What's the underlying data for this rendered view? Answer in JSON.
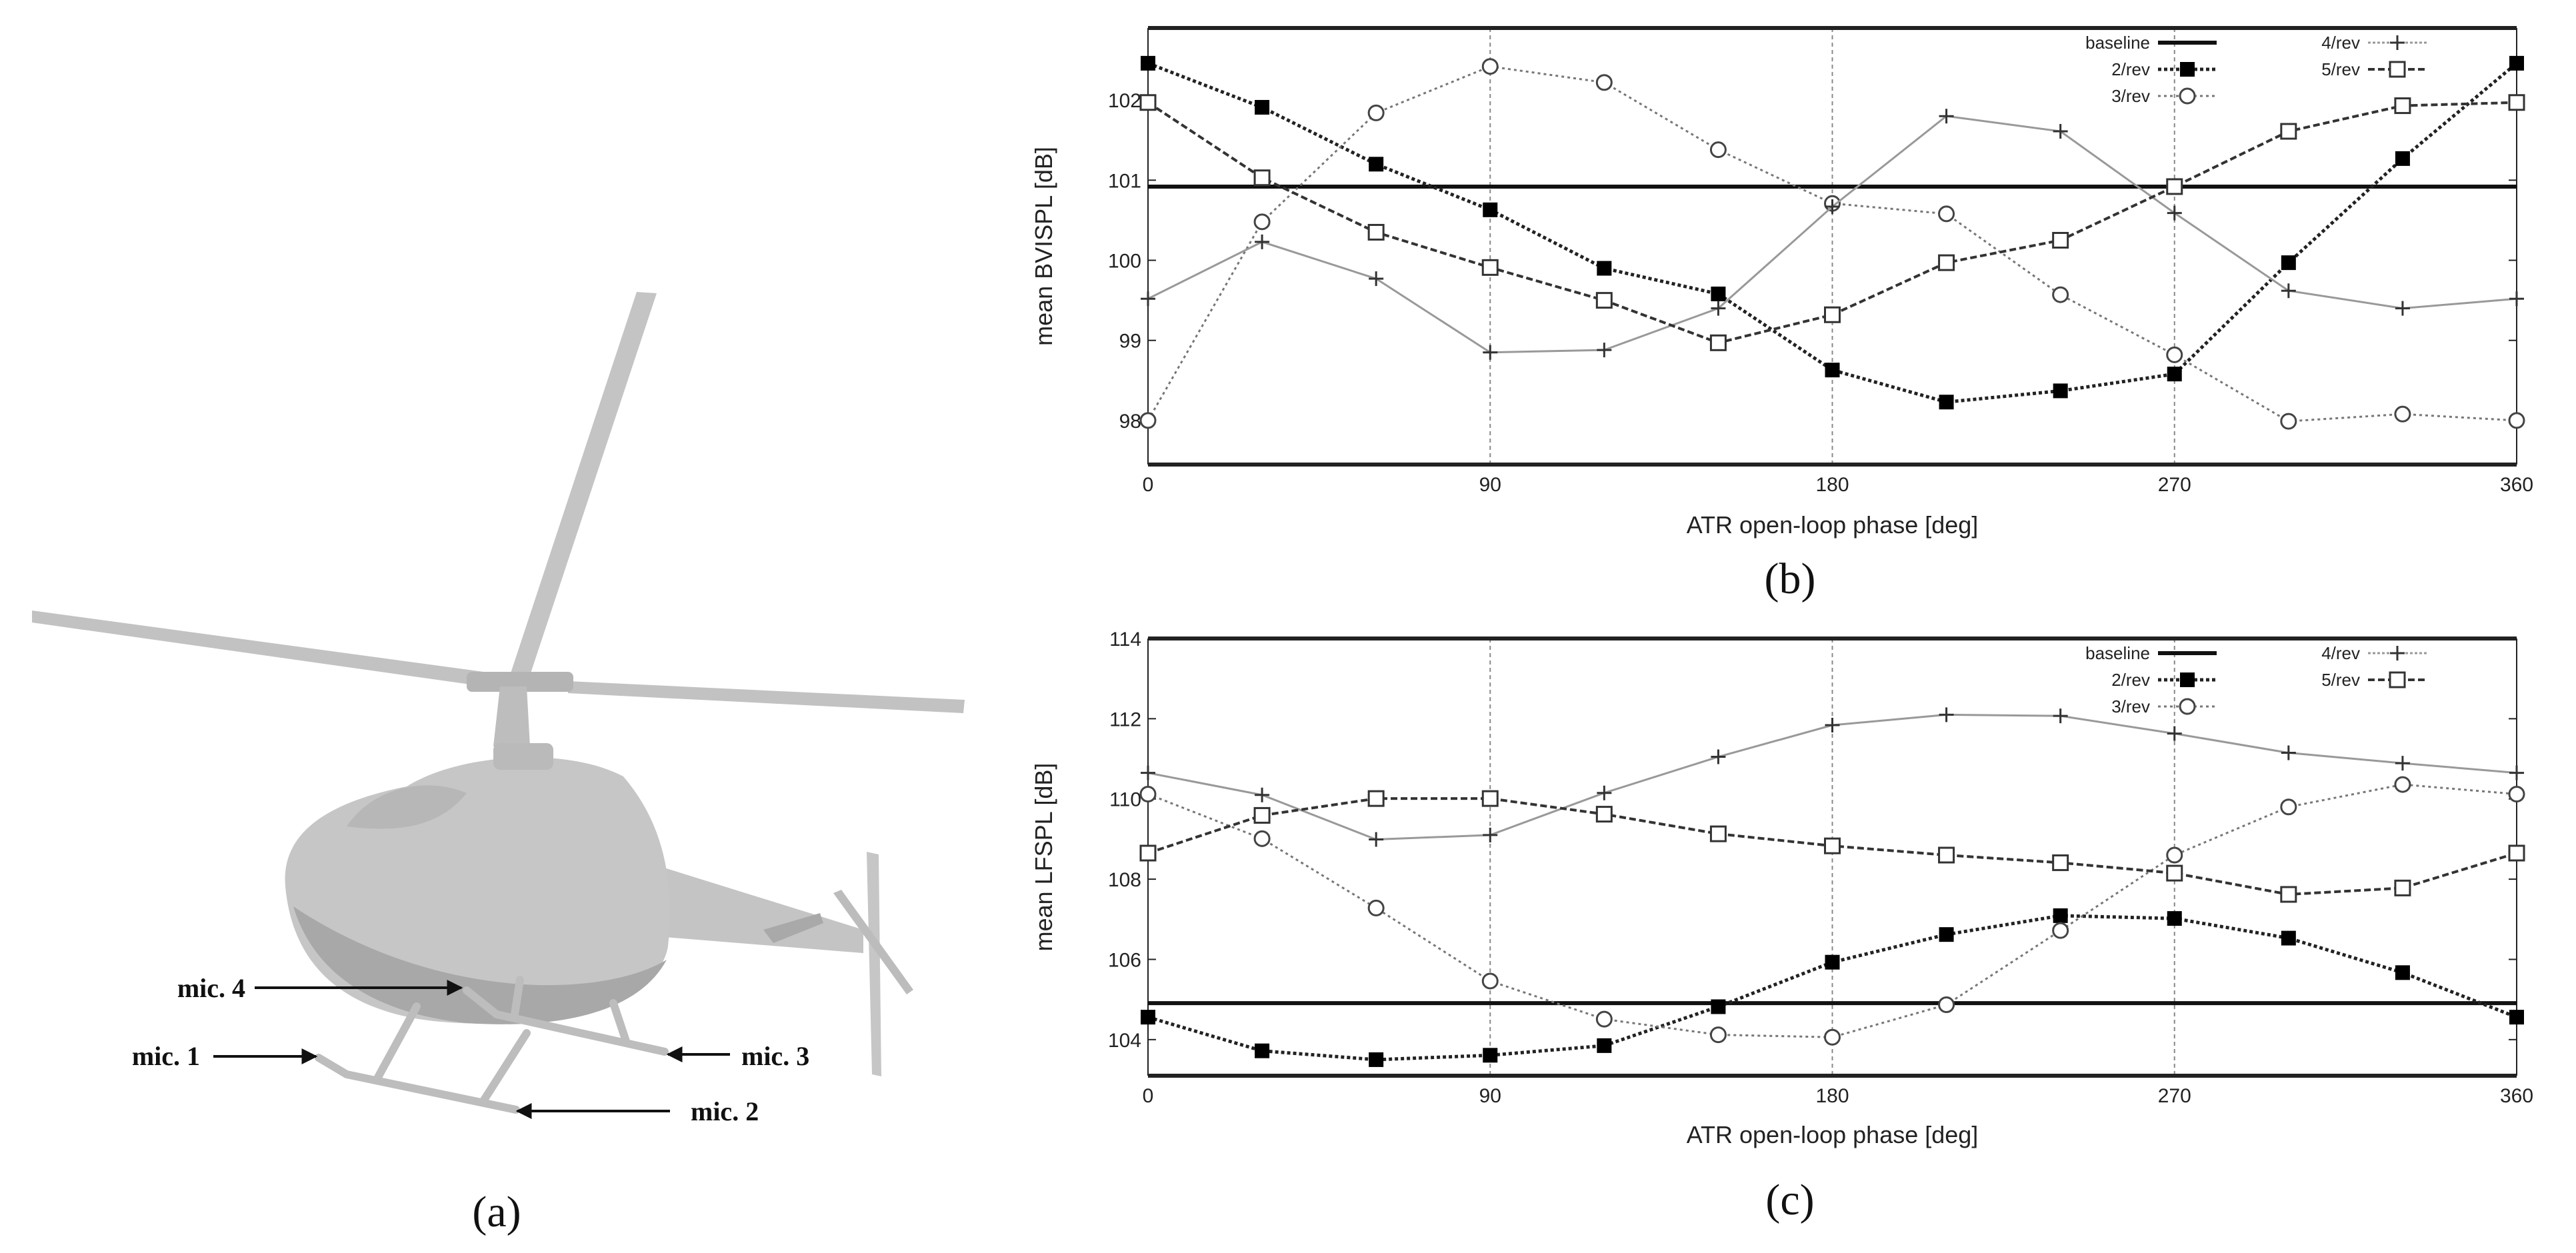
{
  "panels": {
    "a": {
      "caption": "(a)",
      "mic_labels": [
        "mic. 1",
        "mic. 2",
        "mic. 3",
        "mic. 4"
      ]
    },
    "b": {
      "caption": "(b)"
    },
    "c": {
      "caption": "(c)"
    }
  },
  "chart_data": [
    {
      "type": "line",
      "title": "",
      "xlabel": "ATR open-loop phase [deg]",
      "ylabel": "mean BVISPL [dB]",
      "xlim": [
        0,
        360
      ],
      "ylim": [
        97.45,
        102.9
      ],
      "xticks": [
        "0",
        "90",
        "180",
        "270",
        "360"
      ],
      "yticks": [
        "98",
        "99",
        "100",
        "101",
        "102"
      ],
      "grid": "vertical dashed at x ticks",
      "legend_position": "top-right",
      "x": [
        0,
        30,
        60,
        90,
        120,
        150,
        180,
        210,
        240,
        270,
        300,
        330,
        360
      ],
      "baseline": {
        "name": "baseline",
        "value": 100.92
      },
      "series": [
        {
          "name": "2/rev",
          "marker": "filled-square",
          "values": [
            102.46,
            101.91,
            101.2,
            100.63,
            99.9,
            99.58,
            98.63,
            98.23,
            98.37,
            98.58,
            99.97,
            101.27,
            102.46
          ]
        },
        {
          "name": "3/rev",
          "marker": "open-circle",
          "values": [
            98.0,
            100.48,
            101.84,
            102.42,
            102.22,
            101.38,
            100.71,
            100.58,
            99.57,
            98.82,
            97.99,
            98.08,
            98.0
          ]
        },
        {
          "name": "4/rev",
          "marker": "plus",
          "values": [
            99.52,
            100.23,
            99.77,
            98.85,
            98.88,
            99.4,
            100.67,
            101.8,
            101.61,
            100.59,
            99.62,
            99.4,
            99.52
          ]
        },
        {
          "name": "5/rev",
          "marker": "open-square",
          "values": [
            101.97,
            101.03,
            100.35,
            99.91,
            99.5,
            98.97,
            99.32,
            99.97,
            100.25,
            100.92,
            101.61,
            101.93,
            101.97
          ]
        }
      ]
    },
    {
      "type": "line",
      "title": "",
      "xlabel": "ATR open-loop phase [deg]",
      "ylabel": "mean LFSPL [dB]",
      "xlim": [
        0,
        360
      ],
      "ylim": [
        103.1,
        114
      ],
      "xticks": [
        "0",
        "90",
        "180",
        "270",
        "360"
      ],
      "yticks": [
        "104",
        "106",
        "108",
        "110",
        "112",
        "114"
      ],
      "grid": "vertical dashed at x ticks",
      "legend_position": "top-right",
      "x": [
        0,
        30,
        60,
        90,
        120,
        150,
        180,
        210,
        240,
        270,
        300,
        330,
        360
      ],
      "baseline": {
        "name": "baseline",
        "value": 104.91
      },
      "series": [
        {
          "name": "2/rev",
          "marker": "filled-square",
          "values": [
            104.56,
            103.72,
            103.5,
            103.61,
            103.85,
            104.82,
            105.93,
            106.62,
            107.09,
            107.02,
            106.53,
            105.67,
            104.56
          ]
        },
        {
          "name": "3/rev",
          "marker": "open-circle",
          "values": [
            110.12,
            109.01,
            107.28,
            105.46,
            104.51,
            104.12,
            104.06,
            104.87,
            106.72,
            108.6,
            109.8,
            110.36,
            110.12
          ]
        },
        {
          "name": "4/rev",
          "marker": "plus",
          "values": [
            110.65,
            110.1,
            108.99,
            109.1,
            110.15,
            111.05,
            111.84,
            112.1,
            112.07,
            111.63,
            111.15,
            110.89,
            110.65
          ]
        },
        {
          "name": "5/rev",
          "marker": "open-square",
          "values": [
            108.65,
            109.59,
            110.01,
            110.01,
            109.62,
            109.13,
            108.83,
            108.6,
            108.41,
            108.15,
            107.62,
            107.78,
            108.65
          ]
        }
      ]
    }
  ]
}
